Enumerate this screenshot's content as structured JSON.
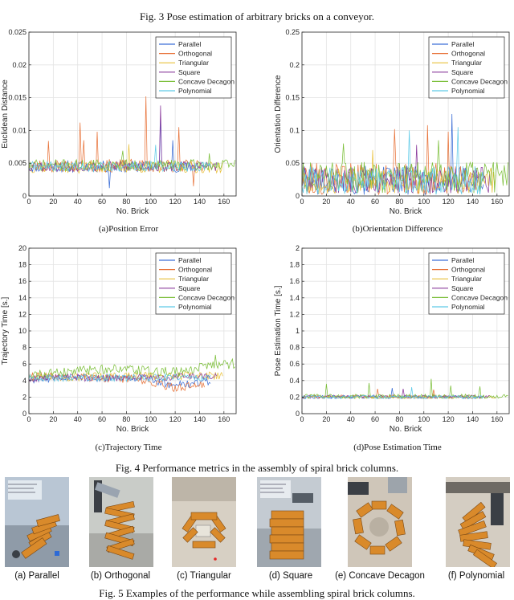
{
  "captions": {
    "fig3": "Fig. 3  Pose estimation of arbitrary bricks on a conveyor.",
    "fig4": "Fig. 4  Performance metrics in the assembly of spiral brick columns.",
    "fig5": "Fig. 5  Examples of the performance while assembling spiral brick columns."
  },
  "subcaptions": {
    "a": "(a)Position Error",
    "b": "(b)Orientation Difference",
    "c": "(c)Trajectory Time",
    "d": "(d)Pose Estimation Time"
  },
  "legend": [
    "Parallel",
    "Orthogonal",
    "Triangular",
    "Square",
    "Concave Decagon",
    "Polynomial"
  ],
  "colors": {
    "Parallel": "#3d6fd6",
    "Orthogonal": "#e8743b",
    "Triangular": "#e9c13b",
    "Square": "#8a3b9c",
    "Concave Decagon": "#7cbf3a",
    "Polynomial": "#5fcbe8"
  },
  "photos": [
    {
      "label": "(a) Parallel"
    },
    {
      "label": "(b) Orthogonal"
    },
    {
      "label": "(c) Triangular"
    },
    {
      "label": "(d) Square"
    },
    {
      "label": "(e) Concave Decagon"
    },
    {
      "label": "(f) Polynomial"
    }
  ],
  "chart_data": [
    {
      "id": "a",
      "type": "line",
      "title": "",
      "xlabel": "No. Brick",
      "ylabel": "Euclidean Distance",
      "xlim": [
        0,
        170
      ],
      "ylim": [
        0,
        0.025
      ],
      "xticks": [
        "0",
        "20",
        "40",
        "60",
        "80",
        "100",
        "120",
        "140",
        "160"
      ],
      "yticks": [
        "0",
        "0.005",
        "0.01",
        "0.015",
        "0.02",
        "0.025"
      ],
      "legend_position": "top-right",
      "series": [
        {
          "name": "Parallel",
          "base": 0.0045,
          "amp": 0.0009,
          "count": 150,
          "seed": 11,
          "spikes": [
            [
              108,
              0.0122
            ],
            [
              118,
              0.0085
            ],
            [
              66,
              0.0012
            ]
          ]
        },
        {
          "name": "Orthogonal",
          "base": 0.0046,
          "amp": 0.001,
          "count": 145,
          "seed": 23,
          "spikes": [
            [
              42,
              0.0112
            ],
            [
              56,
              0.0098
            ],
            [
              96,
              0.0152
            ],
            [
              123,
              0.0105
            ],
            [
              45,
              0.0085
            ],
            [
              16,
              0.0084
            ],
            [
              135,
              0.0015
            ]
          ]
        },
        {
          "name": "Triangular",
          "base": 0.0044,
          "amp": 0.0009,
          "count": 160,
          "seed": 37,
          "spikes": [
            [
              82,
              0.0079
            ]
          ]
        },
        {
          "name": "Square",
          "base": 0.0045,
          "amp": 0.0008,
          "count": 155,
          "seed": 53,
          "spikes": [
            [
              108,
              0.0138
            ]
          ]
        },
        {
          "name": "Concave Decagon",
          "base": 0.0047,
          "amp": 0.0009,
          "count": 170,
          "seed": 71,
          "spikes": [
            [
              77,
              0.0069
            ],
            [
              148,
              0.0065
            ]
          ]
        },
        {
          "name": "Polynomial",
          "base": 0.0045,
          "amp": 0.0008,
          "count": 150,
          "seed": 89,
          "spikes": [
            [
              104,
              0.0078
            ]
          ]
        }
      ]
    },
    {
      "id": "b",
      "type": "line",
      "title": "",
      "xlabel": "No. Brick",
      "ylabel": "Orientation Difference",
      "xlim": [
        0,
        170
      ],
      "ylim": [
        0,
        0.25
      ],
      "xticks": [
        "0",
        "20",
        "40",
        "60",
        "80",
        "100",
        "120",
        "140",
        "160"
      ],
      "yticks": [
        "0",
        "0.05",
        "0.1",
        "0.15",
        "0.2",
        "0.25"
      ],
      "legend_position": "top-right",
      "series": [
        {
          "name": "Parallel",
          "base": 0.024,
          "amp": 0.022,
          "count": 150,
          "seed": 101,
          "spikes": [
            [
              123,
              0.125
            ]
          ]
        },
        {
          "name": "Orthogonal",
          "base": 0.026,
          "amp": 0.024,
          "count": 145,
          "seed": 113,
          "spikes": [
            [
              76,
              0.102
            ],
            [
              103,
              0.108
            ],
            [
              120,
              0.098
            ]
          ]
        },
        {
          "name": "Triangular",
          "base": 0.023,
          "amp": 0.02,
          "count": 160,
          "seed": 127,
          "spikes": [
            [
              58,
              0.07
            ]
          ]
        },
        {
          "name": "Square",
          "base": 0.024,
          "amp": 0.02,
          "count": 155,
          "seed": 139,
          "spikes": [
            [
              94,
              0.078
            ]
          ]
        },
        {
          "name": "Concave Decagon",
          "base": 0.028,
          "amp": 0.024,
          "count": 170,
          "seed": 151,
          "spikes": [
            [
              34,
              0.08
            ],
            [
              112,
              0.085
            ]
          ]
        },
        {
          "name": "Polynomial",
          "base": 0.024,
          "amp": 0.022,
          "count": 150,
          "seed": 163,
          "spikes": [
            [
              88,
              0.1
            ],
            [
              128,
              0.105
            ]
          ]
        }
      ]
    },
    {
      "id": "c",
      "type": "line",
      "title": "",
      "xlabel": "No. Brick",
      "ylabel": "Trajectory Time [s.]",
      "xlim": [
        0,
        170
      ],
      "ylim": [
        0,
        20
      ],
      "xticks": [
        "0",
        "20",
        "40",
        "60",
        "80",
        "100",
        "120",
        "140",
        "160"
      ],
      "yticks": [
        "0",
        "2",
        "4",
        "6",
        "8",
        "10",
        "12",
        "14",
        "16",
        "18",
        "20"
      ],
      "legend_position": "top-right",
      "series": [
        {
          "name": "Parallel",
          "base": 4.3,
          "amp": 0.5,
          "count": 150,
          "seed": 211,
          "trend": [
            [
              0,
              4.2
            ],
            [
              90,
              4.4
            ],
            [
              120,
              3.4
            ],
            [
              150,
              3.9
            ]
          ],
          "spikes": []
        },
        {
          "name": "Orthogonal",
          "base": 4.4,
          "amp": 0.5,
          "count": 145,
          "seed": 223,
          "trend": [
            [
              0,
              4.5
            ],
            [
              90,
              4.2
            ],
            [
              120,
              3.1
            ],
            [
              145,
              3.6
            ]
          ],
          "spikes": []
        },
        {
          "name": "Triangular",
          "base": 4.5,
          "amp": 0.5,
          "count": 160,
          "seed": 227,
          "trend": [
            [
              0,
              4.4
            ],
            [
              160,
              4.6
            ]
          ],
          "spikes": []
        },
        {
          "name": "Square",
          "base": 4.4,
          "amp": 0.45,
          "count": 155,
          "seed": 229,
          "trend": [
            [
              0,
              4.3
            ],
            [
              155,
              4.5
            ]
          ],
          "spikes": []
        },
        {
          "name": "Concave Decagon",
          "base": 4.9,
          "amp": 0.6,
          "count": 170,
          "seed": 233,
          "trend": [
            [
              0,
              4.6
            ],
            [
              60,
              5.4
            ],
            [
              120,
              5.0
            ],
            [
              160,
              6.0
            ],
            [
              170,
              5.5
            ]
          ],
          "spikes": [
            [
              153,
              7.1
            ],
            [
              167,
              6.6
            ]
          ]
        },
        {
          "name": "Polynomial",
          "base": 4.4,
          "amp": 0.45,
          "count": 150,
          "seed": 239,
          "trend": [
            [
              0,
              4.3
            ],
            [
              150,
              4.4
            ]
          ],
          "spikes": []
        }
      ]
    },
    {
      "id": "d",
      "type": "line",
      "title": "",
      "xlabel": "No. Brick",
      "ylabel": "Pose Estimation Time [s.]",
      "xlim": [
        0,
        170
      ],
      "ylim": [
        0,
        2
      ],
      "xticks": [
        "0",
        "20",
        "40",
        "60",
        "80",
        "100",
        "120",
        "140",
        "160"
      ],
      "yticks": [
        "0",
        "0.2",
        "0.4",
        "0.6",
        "0.8",
        "1",
        "1.2",
        "1.4",
        "1.6",
        "1.8",
        "2"
      ],
      "legend_position": "top-right",
      "series": [
        {
          "name": "Parallel",
          "base": 0.2,
          "amp": 0.02,
          "count": 150,
          "seed": 307,
          "spikes": [
            [
              74,
              0.31
            ]
          ]
        },
        {
          "name": "Orthogonal",
          "base": 0.205,
          "amp": 0.02,
          "count": 140,
          "seed": 311,
          "spikes": [
            [
              62,
              0.3
            ],
            [
              108,
              0.29
            ]
          ]
        },
        {
          "name": "Triangular",
          "base": 0.2,
          "amp": 0.018,
          "count": 160,
          "seed": 313,
          "spikes": []
        },
        {
          "name": "Square",
          "base": 0.205,
          "amp": 0.02,
          "count": 155,
          "seed": 317,
          "spikes": [
            [
              83,
              0.3
            ]
          ]
        },
        {
          "name": "Concave Decagon",
          "base": 0.21,
          "amp": 0.025,
          "count": 170,
          "seed": 331,
          "spikes": [
            [
              20,
              0.36
            ],
            [
              55,
              0.37
            ],
            [
              106,
              0.42
            ],
            [
              122,
              0.34
            ],
            [
              146,
              0.33
            ]
          ]
        },
        {
          "name": "Polynomial",
          "base": 0.2,
          "amp": 0.02,
          "count": 150,
          "seed": 337,
          "spikes": [
            [
              90,
              0.32
            ]
          ]
        }
      ]
    }
  ]
}
